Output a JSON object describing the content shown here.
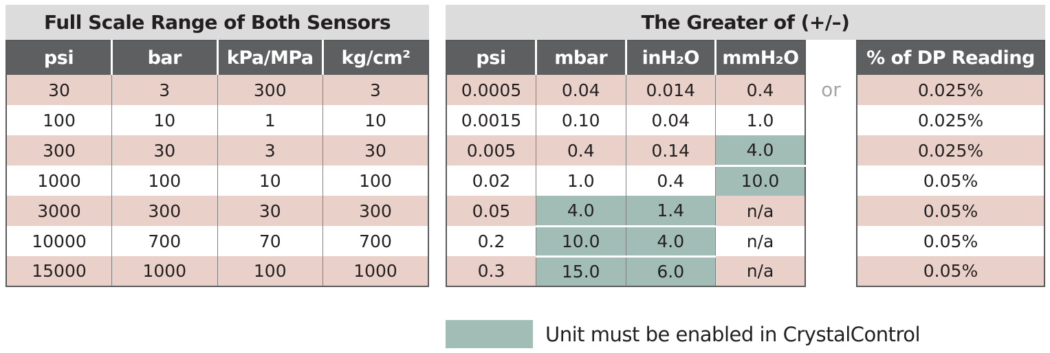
{
  "left_table": {
    "title": "Full Scale Range of Both Sensors",
    "columns": [
      "psi",
      "bar",
      "kPa/MPa",
      "kg/cm²"
    ],
    "rows": [
      [
        "30",
        "3",
        "300",
        "3"
      ],
      [
        "100",
        "10",
        "1",
        "10"
      ],
      [
        "300",
        "30",
        "3",
        "30"
      ],
      [
        "1000",
        "100",
        "10",
        "100"
      ],
      [
        "3000",
        "300",
        "30",
        "300"
      ],
      [
        "10000",
        "700",
        "70",
        "700"
      ],
      [
        "15000",
        "1000",
        "100",
        "1000"
      ]
    ]
  },
  "right_table": {
    "title": "The Greater of (+/–)",
    "columns": [
      "psi",
      "mbar",
      "inH₂O",
      "mmH₂O"
    ],
    "rows": [
      [
        "0.0005",
        "0.04",
        "0.014",
        "0.4"
      ],
      [
        "0.0015",
        "0.10",
        "0.04",
        "1.0"
      ],
      [
        "0.005",
        "0.4",
        "0.14",
        "4.0"
      ],
      [
        "0.02",
        "1.0",
        "0.4",
        "10.0"
      ],
      [
        "0.05",
        "4.0",
        "1.4",
        "n/a"
      ],
      [
        "0.2",
        "10.0",
        "4.0",
        "n/a"
      ],
      [
        "0.3",
        "15.0",
        "6.0",
        "n/a"
      ]
    ],
    "highlights": [
      {
        "row": 2,
        "col": 3
      },
      {
        "row": 3,
        "col": 3,
        "sep": true
      },
      {
        "row": 4,
        "col": 1
      },
      {
        "row": 4,
        "col": 2
      },
      {
        "row": 5,
        "col": 1,
        "sep": true
      },
      {
        "row": 5,
        "col": 2,
        "sep": true
      },
      {
        "row": 6,
        "col": 1,
        "sep": true
      },
      {
        "row": 6,
        "col": 2,
        "sep": true
      }
    ],
    "or_label": "or"
  },
  "dp_table": {
    "columns": [
      "% of DP Reading"
    ],
    "rows": [
      [
        "0.025%"
      ],
      [
        "0.025%"
      ],
      [
        "0.025%"
      ],
      [
        "0.05%"
      ],
      [
        "0.05%"
      ],
      [
        "0.05%"
      ],
      [
        "0.05%"
      ]
    ]
  },
  "legend": {
    "text": "Unit must be enabled in CrystalControl"
  },
  "colors": {
    "header_bg": "#5e5f61",
    "title_bg": "#dcdcdd",
    "row_pink": "#e9d1c9",
    "highlight_teal": "#a2bcb6",
    "text": "#231f20",
    "or_text": "#a6a4a4",
    "border": "#58595b"
  }
}
